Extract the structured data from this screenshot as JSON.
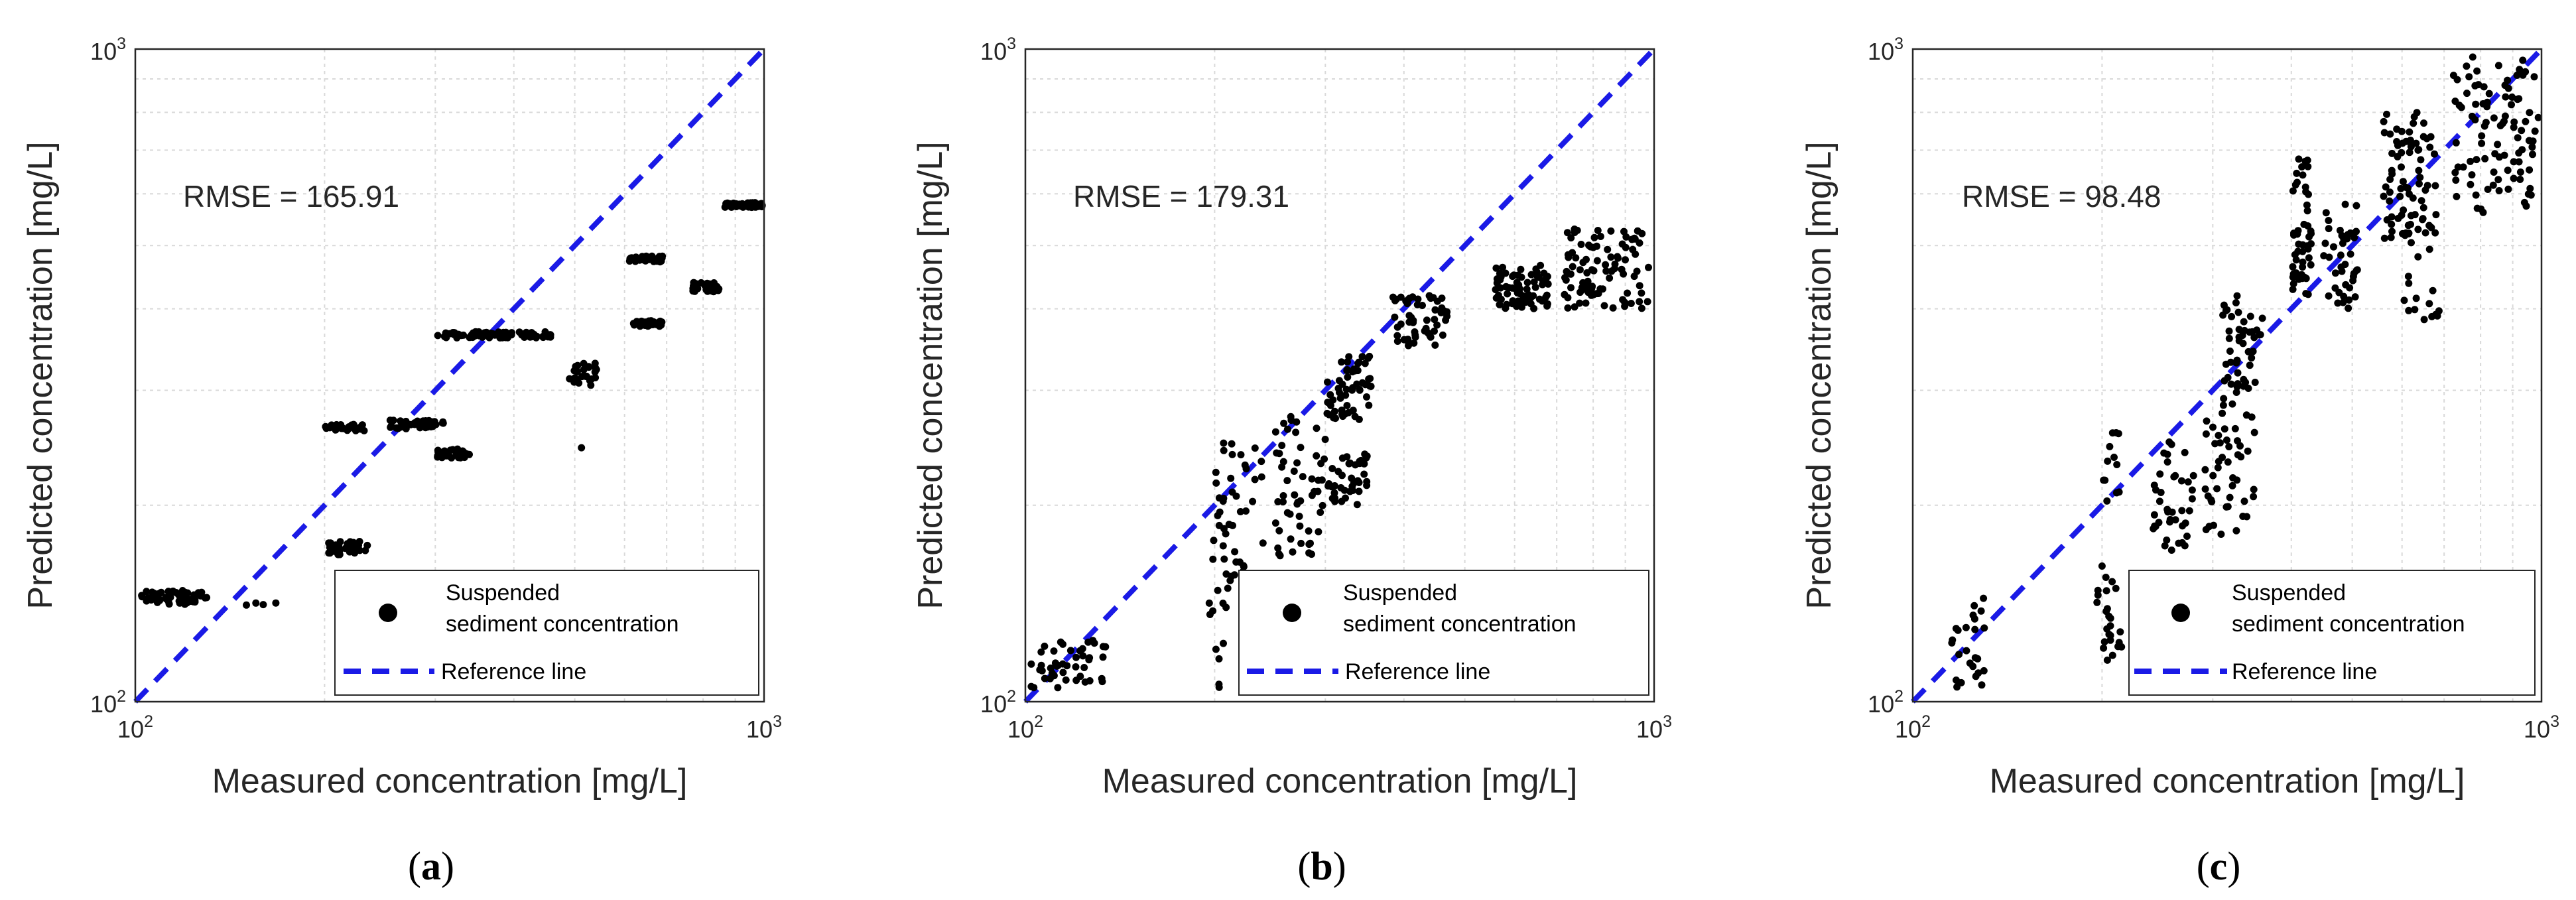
{
  "chart_data": [
    {
      "type": "scatter",
      "panel_label": "a",
      "xlabel": "Measured concentration [mg/L]",
      "ylabel": "Predicted concentration [mg/L]",
      "xscale": "log",
      "yscale": "log",
      "xlim": [
        100,
        1000
      ],
      "ylim": [
        100,
        1000
      ],
      "x_ticks": [
        {
          "value": 100,
          "base": "10",
          "exp": "2"
        },
        {
          "value": 1000,
          "base": "10",
          "exp": "3"
        }
      ],
      "y_ticks": [
        {
          "value": 100,
          "base": "10",
          "exp": "2"
        },
        {
          "value": 1000,
          "base": "10",
          "exp": "3"
        }
      ],
      "grid": true,
      "annotation": "RMSE = 165.91",
      "legend": {
        "placement": "bottom-right",
        "entries": [
          {
            "label_line1": "Suspended",
            "label_line2": "sediment concentration",
            "marker": "dot",
            "color": "#000000"
          },
          {
            "label": "Reference line",
            "marker": "dashed-line",
            "color": "#1a1ae6"
          }
        ]
      },
      "reference_line": {
        "from": [
          100,
          100
        ],
        "to": [
          1000,
          1000
        ],
        "color": "#1a1ae6"
      },
      "clusters": [
        {
          "x": [
            102,
            130
          ],
          "y": [
            141,
            148
          ],
          "n": 55
        },
        {
          "x": [
            150,
            175
          ],
          "y": [
            140,
            142
          ],
          "n": 4
        },
        {
          "x": [
            200,
            235
          ],
          "y": [
            168,
            176
          ],
          "n": 32
        },
        {
          "x": [
            200,
            232
          ],
          "y": [
            260,
            266
          ],
          "n": 30
        },
        {
          "x": [
            252,
            310
          ],
          "y": [
            262,
            270
          ],
          "n": 45
        },
        {
          "x": [
            302,
            340
          ],
          "y": [
            236,
            244
          ],
          "n": 30
        },
        {
          "x": [
            302,
            465
          ],
          "y": [
            361,
            369
          ],
          "n": 75
        },
        {
          "x": [
            490,
            545
          ],
          "y": [
            305,
            330
          ],
          "n": 24
        },
        {
          "x": [
            510,
            515
          ],
          "y": [
            244,
            246
          ],
          "n": 1
        },
        {
          "x": [
            605,
            690
          ],
          "y": [
            472,
            482
          ],
          "n": 40
        },
        {
          "x": [
            620,
            690
          ],
          "y": [
            376,
            384
          ],
          "n": 32
        },
        {
          "x": [
            770,
            855
          ],
          "y": [
            425,
            440
          ],
          "n": 38
        },
        {
          "x": [
            865,
            1000
          ],
          "y": [
            572,
            582
          ],
          "n": 55
        }
      ]
    },
    {
      "type": "scatter",
      "panel_label": "b",
      "xlabel": "Measured concentration [mg/L]",
      "ylabel": "Predicted concentration [mg/L]",
      "xscale": "log",
      "yscale": "log",
      "xlim": [
        100,
        1000
      ],
      "ylim": [
        100,
        1000
      ],
      "x_ticks": [
        {
          "value": 100,
          "base": "10",
          "exp": "2"
        },
        {
          "value": 1000,
          "base": "10",
          "exp": "3"
        }
      ],
      "y_ticks": [
        {
          "value": 100,
          "base": "10",
          "exp": "2"
        },
        {
          "value": 1000,
          "base": "10",
          "exp": "3"
        }
      ],
      "grid": true,
      "annotation": "RMSE = 179.31",
      "legend": {
        "placement": "bottom-right",
        "entries": [
          {
            "label_line1": "Suspended",
            "label_line2": "sediment concentration",
            "marker": "dot",
            "color": "#000000"
          },
          {
            "label": "Reference line",
            "marker": "dashed-line",
            "color": "#1a1ae6"
          }
        ]
      },
      "reference_line": {
        "from": [
          100,
          100
        ],
        "to": [
          1000,
          1000
        ],
        "color": "#1a1ae6"
      },
      "clusters": [
        {
          "x": [
            102,
            135
          ],
          "y": [
            105,
            125
          ],
          "n": 45
        },
        {
          "x": [
            195,
            210
          ],
          "y": [
            105,
            150
          ],
          "n": 12
        },
        {
          "x": [
            198,
            240
          ],
          "y": [
            150,
            250
          ],
          "n": 45
        },
        {
          "x": [
            250,
            300
          ],
          "y": [
            165,
            275
          ],
          "n": 55
        },
        {
          "x": [
            300,
            350
          ],
          "y": [
            200,
            240
          ],
          "n": 40
        },
        {
          "x": [
            300,
            355
          ],
          "y": [
            270,
            340
          ],
          "n": 55
        },
        {
          "x": [
            380,
            470
          ],
          "y": [
            350,
            420
          ],
          "n": 55
        },
        {
          "x": [
            550,
            680
          ],
          "y": [
            400,
            470
          ],
          "n": 70
        },
        {
          "x": [
            720,
            980
          ],
          "y": [
            400,
            530
          ],
          "n": 95
        }
      ]
    },
    {
      "type": "scatter",
      "panel_label": "c",
      "xlabel": "Measured concentration [mg/L]",
      "ylabel": "Predicted concentration [mg/L]",
      "xscale": "log",
      "yscale": "log",
      "xlim": [
        100,
        1000
      ],
      "ylim": [
        100,
        1000
      ],
      "x_ticks": [
        {
          "value": 100,
          "base": "10",
          "exp": "2"
        },
        {
          "value": 1000,
          "base": "10",
          "exp": "3"
        }
      ],
      "y_ticks": [
        {
          "value": 100,
          "base": "10",
          "exp": "2"
        },
        {
          "value": 1000,
          "base": "10",
          "exp": "3"
        }
      ],
      "grid": true,
      "annotation": "RMSE = 98.48",
      "legend": {
        "placement": "bottom-right",
        "entries": [
          {
            "label_line1": "Suspended",
            "label_line2": "sediment concentration",
            "marker": "dot",
            "color": "#000000"
          },
          {
            "label": "Reference line",
            "marker": "dashed-line",
            "color": "#1a1ae6"
          }
        ]
      },
      "reference_line": {
        "from": [
          100,
          100
        ],
        "to": [
          1000,
          1000
        ],
        "color": "#1a1ae6"
      },
      "clusters": [
        {
          "x": [
            115,
            130
          ],
          "y": [
            105,
            145
          ],
          "n": 25
        },
        {
          "x": [
            195,
            215
          ],
          "y": [
            110,
            165
          ],
          "n": 25
        },
        {
          "x": [
            198,
            215
          ],
          "y": [
            200,
            260
          ],
          "n": 12
        },
        {
          "x": [
            240,
            280
          ],
          "y": [
            170,
            250
          ],
          "n": 40
        },
        {
          "x": [
            290,
            350
          ],
          "y": [
            180,
            300
          ],
          "n": 50
        },
        {
          "x": [
            310,
            360
          ],
          "y": [
            300,
            420
          ],
          "n": 45
        },
        {
          "x": [
            400,
            430
          ],
          "y": [
            420,
            680
          ],
          "n": 50
        },
        {
          "x": [
            450,
            510
          ],
          "y": [
            400,
            600
          ],
          "n": 40
        },
        {
          "x": [
            560,
            680
          ],
          "y": [
            500,
            800
          ],
          "n": 80
        },
        {
          "x": [
            600,
            700
          ],
          "y": [
            380,
            500
          ],
          "n": 15
        },
        {
          "x": [
            720,
            990
          ],
          "y": [
            560,
            980
          ],
          "n": 95
        }
      ]
    }
  ]
}
